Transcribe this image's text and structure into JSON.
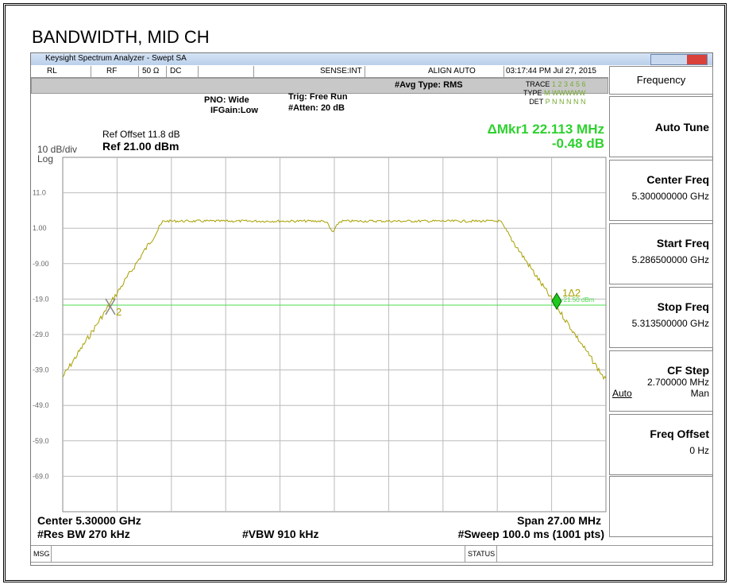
{
  "title": "BANDWIDTH, MID CH",
  "window": {
    "title": "Keysight Spectrum Analyzer - Swept SA"
  },
  "status_bar": {
    "items": [
      "RL",
      "RF",
      "50 Ω",
      "DC",
      "SENSE:INT",
      "ALIGN AUTO"
    ],
    "time": "03:17:44 PM Jul 27, 2015"
  },
  "settings": {
    "avg_type": "#Avg Type: RMS",
    "pno": "PNO: Wide",
    "ifgain": "IFGain:Low",
    "trig": "Trig: Free Run",
    "atten": "#Atten: 20 dB"
  },
  "trace_info": {
    "trace_label": "TRACE",
    "trace": "1 2 3 4 5 6",
    "type_label": "TYPE",
    "type": "M WWWWW",
    "det_label": "DET",
    "det": "P N N N N N"
  },
  "display": {
    "ref_offset": "Ref Offset 11.8 dB",
    "ref_level": "Ref 21.00 dBm",
    "scale": "10 dB/div",
    "scale_type": "Log"
  },
  "marker_readout": {
    "freq": "ΔMkr1 22.113 MHz",
    "level": "-0.48 dB"
  },
  "y_labels": [
    "11.0",
    "1.00",
    "-9.00",
    "-19.0",
    "-29.0",
    "-39.0",
    "-49.0",
    "-59.0",
    "-69.0"
  ],
  "markers": {
    "delta": "1Δ2",
    "line_level": "-21.50 dBm",
    "ref": "2"
  },
  "footer": {
    "center": "Center 5.30000 GHz",
    "span": "Span 27.00 MHz",
    "rbw": "#Res BW 270 kHz",
    "vbw": "#VBW 910 kHz",
    "sweep": "#Sweep  100.0 ms (1001 pts)"
  },
  "message_bar": {
    "msg": "MSG",
    "status": "STATUS"
  },
  "menu": {
    "header": "Frequency",
    "buttons": [
      {
        "label": "Auto Tune"
      },
      {
        "label": "Center Freq",
        "value": "5.300000000 GHz"
      },
      {
        "label": "Start Freq",
        "value": "5.286500000 GHz"
      },
      {
        "label": "Stop Freq",
        "value": "5.313500000 GHz"
      },
      {
        "label": "CF Step",
        "value": "2.700000 MHz",
        "left": "Auto",
        "right": "Man"
      },
      {
        "label": "Freq Offset",
        "value": "0 Hz"
      }
    ]
  }
}
